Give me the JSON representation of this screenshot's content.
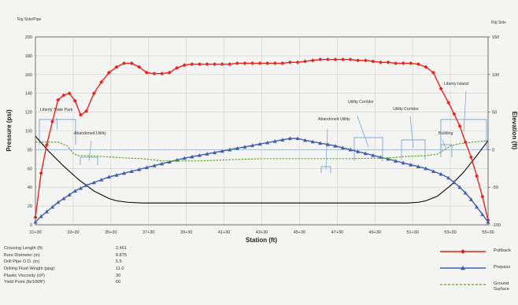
{
  "chart_data": {
    "type": "line",
    "title": "",
    "xlabel": "Station (ft)",
    "ylabel": "Pressure (psi)",
    "y2label": "Elevation (ft)",
    "y_left_unit_label": "Rig Side/Pipe",
    "y_right_unit_label": "Rig Side",
    "xlim": [
      3130,
      5530
    ],
    "ylim": [
      0,
      200
    ],
    "y2lim": [
      -100,
      150
    ],
    "x_ticks": [
      3130,
      3330,
      3530,
      3730,
      3930,
      4130,
      4330,
      4530,
      4730,
      4930,
      5130,
      5330,
      5530
    ],
    "x_tick_labels": [
      "31+30",
      "33+30",
      "35+30",
      "37+30",
      "39+30",
      "41+30",
      "43+30",
      "45+30",
      "47+30",
      "49+30",
      "51+30",
      "53+30",
      "55+30"
    ],
    "y_ticks": [
      0,
      20,
      40,
      60,
      80,
      100,
      120,
      140,
      160,
      180,
      200
    ],
    "y2_ticks": [
      -100,
      -50,
      0,
      50,
      100,
      150
    ],
    "grid": true,
    "series": [
      {
        "name": "Pullback",
        "color": "#e8221c",
        "marker": "diamond",
        "x": [
          3130,
          3160,
          3190,
          3220,
          3250,
          3280,
          3310,
          3340,
          3370,
          3400,
          3440,
          3480,
          3520,
          3560,
          3600,
          3640,
          3680,
          3720,
          3760,
          3800,
          3840,
          3880,
          3920,
          3960,
          4000,
          4040,
          4080,
          4120,
          4160,
          4200,
          4240,
          4280,
          4320,
          4360,
          4400,
          4440,
          4480,
          4520,
          4560,
          4600,
          4640,
          4680,
          4720,
          4760,
          4800,
          4840,
          4880,
          4920,
          4960,
          5000,
          5040,
          5080,
          5120,
          5160,
          5200,
          5240,
          5280,
          5320,
          5350,
          5380,
          5410,
          5440,
          5470,
          5500,
          5530
        ],
        "y": [
          8,
          55,
          85,
          110,
          133,
          138,
          140,
          132,
          117,
          121,
          140,
          152,
          162,
          168,
          172,
          172,
          168,
          162,
          161,
          161,
          162,
          167,
          170,
          171,
          171,
          171,
          171,
          171,
          171,
          172,
          172,
          172,
          172,
          172,
          172,
          172,
          173,
          173,
          174,
          175,
          176,
          176,
          176,
          176,
          176,
          175,
          175,
          174,
          173,
          173,
          172,
          172,
          172,
          171,
          168,
          162,
          145,
          130,
          118,
          105,
          88,
          72,
          52,
          30,
          5
        ]
      },
      {
        "name": "Prepass",
        "color": "#3f5fb0",
        "marker": "triangle",
        "x": [
          3130,
          3160,
          3190,
          3220,
          3250,
          3280,
          3310,
          3340,
          3370,
          3400,
          3440,
          3480,
          3520,
          3560,
          3600,
          3640,
          3680,
          3720,
          3760,
          3800,
          3840,
          3880,
          3920,
          3960,
          4000,
          4040,
          4080,
          4120,
          4160,
          4200,
          4240,
          4280,
          4320,
          4360,
          4400,
          4440,
          4480,
          4520,
          4560,
          4600,
          4640,
          4680,
          4720,
          4760,
          4800,
          4840,
          4880,
          4920,
          4960,
          5000,
          5040,
          5080,
          5120,
          5160,
          5200,
          5240,
          5280,
          5320,
          5350,
          5380,
          5410,
          5440,
          5470,
          5500,
          5530
        ],
        "y": [
          3,
          9,
          14,
          19,
          24,
          28,
          32,
          36,
          39,
          42,
          45,
          48,
          51,
          53,
          55,
          57,
          59,
          61,
          63,
          65,
          67,
          69,
          71,
          72.5,
          74,
          75.5,
          77,
          78.5,
          80,
          81.5,
          83,
          84.5,
          86,
          87.5,
          89,
          90.5,
          92,
          92,
          90,
          88.5,
          87,
          85.5,
          84,
          82,
          80,
          78,
          76,
          74,
          72,
          70,
          68,
          66,
          64,
          62,
          60,
          57,
          54,
          50,
          45,
          40,
          34,
          27,
          19,
          11,
          3
        ]
      },
      {
        "name": "Ground Surface",
        "color": "#5aa02c",
        "dashed": true,
        "axis": "y2",
        "x": [
          3130,
          3250,
          3300,
          3330,
          3360,
          3400,
          3480,
          3600,
          3700,
          3800,
          4000,
          4200,
          4330,
          4500,
          4600,
          4800,
          5000,
          5100,
          5200,
          5260,
          5300,
          5330,
          5380,
          5450,
          5530
        ],
        "y": [
          10,
          10,
          5,
          -5,
          -8,
          -8,
          -9,
          -11,
          -12,
          -15,
          -15,
          -13,
          -12,
          -12,
          -12,
          -12,
          -11,
          -9,
          -8,
          -6,
          0,
          5,
          8,
          10,
          12
        ]
      }
    ],
    "borepath": {
      "name": "Bore Profile",
      "color": "#1a1a1a",
      "axis": "y2",
      "x": [
        3130,
        3200,
        3280,
        3360,
        3440,
        3520,
        3560,
        3620,
        3700,
        3900,
        4100,
        4330,
        4600,
        4900,
        5100,
        5160,
        5200,
        5260,
        5330,
        5400,
        5470,
        5530
      ],
      "y": [
        18,
        -2,
        -22,
        -40,
        -55,
        -65,
        -68,
        -70,
        -71,
        -71,
        -71,
        -71,
        -71,
        -71,
        -71,
        -70,
        -68,
        -62,
        -48,
        -30,
        -8,
        12
      ]
    },
    "annotations": [
      {
        "text": "Liberty State Park"
      },
      {
        "text": "Abandoned Utility"
      },
      {
        "text": "Abandoned Utility"
      },
      {
        "text": "Utility Corridor"
      },
      {
        "text": "Utility Corridor"
      },
      {
        "text": "Building"
      },
      {
        "text": "Liberty Island"
      }
    ]
  },
  "parameters": [
    {
      "label": "Crossing Length (ft)",
      "value": "2,461"
    },
    {
      "label": "Bore Diameter (in)",
      "value": "8.875"
    },
    {
      "label": "Drill Pipe O.D. (in)",
      "value": "5.5"
    },
    {
      "label": "Drilling Fluid Weight (ppg)",
      "value": "11.0"
    },
    {
      "label": "Plastic Viscosity (cP)",
      "value": "30"
    },
    {
      "label": "Yield Point (lb/100ft²)",
      "value": "60"
    }
  ],
  "legend": [
    {
      "label": "Pullback",
      "color": "#e8221c",
      "marker": "diamond"
    },
    {
      "label": "Prepass",
      "color": "#3f5fb0",
      "marker": "triangle"
    },
    {
      "label": "Ground Surface",
      "color": "#5aa02c",
      "marker": "dash"
    }
  ]
}
